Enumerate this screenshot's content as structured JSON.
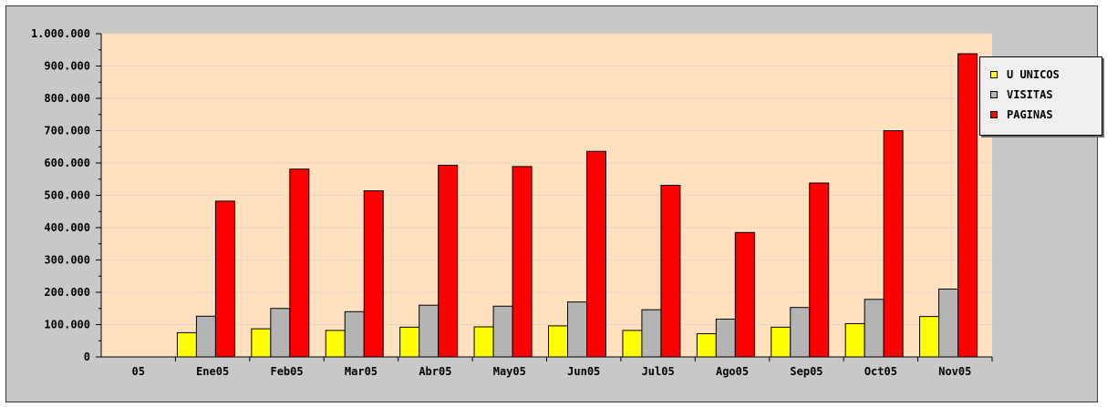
{
  "chart_data": {
    "type": "bar",
    "title": "",
    "xlabel": "",
    "ylabel": "",
    "categories": [
      "05",
      "Ene05",
      "Feb05",
      "Mar05",
      "Abr05",
      "May05",
      "Jun05",
      "Jul05",
      "Ago05",
      "Sep05",
      "Oct05",
      "Nov05"
    ],
    "ylim": [
      0,
      1000000
    ],
    "yticks": [
      0,
      100000,
      200000,
      300000,
      400000,
      500000,
      600000,
      700000,
      800000,
      900000,
      1000000
    ],
    "ytick_labels": [
      "0",
      "100.000",
      "200.000",
      "300.000",
      "400.000",
      "500.000",
      "600.000",
      "700.000",
      "800.000",
      "900.000",
      "1.000.000"
    ],
    "grid": true,
    "legend_position": "top-right",
    "series": [
      {
        "name": "U UNICOS",
        "color": "#ffff00",
        "values": [
          0,
          75000,
          87000,
          82000,
          92000,
          93000,
          96000,
          82000,
          72000,
          92000,
          103000,
          125000
        ]
      },
      {
        "name": "VISITAS",
        "color": "#b4b4b4",
        "values": [
          0,
          126000,
          150000,
          140000,
          160000,
          157000,
          170000,
          146000,
          117000,
          153000,
          178000,
          210000
        ]
      },
      {
        "name": "PAGINAS",
        "color": "#ff0000",
        "values": [
          0,
          482000,
          581000,
          514000,
          593000,
          589000,
          636000,
          531000,
          385000,
          538000,
          700000,
          938000
        ]
      }
    ],
    "colors": {
      "plot_background": "#ffe1c0",
      "frame_background": "#c8c8c8",
      "gridline": "#ead7c1"
    }
  }
}
